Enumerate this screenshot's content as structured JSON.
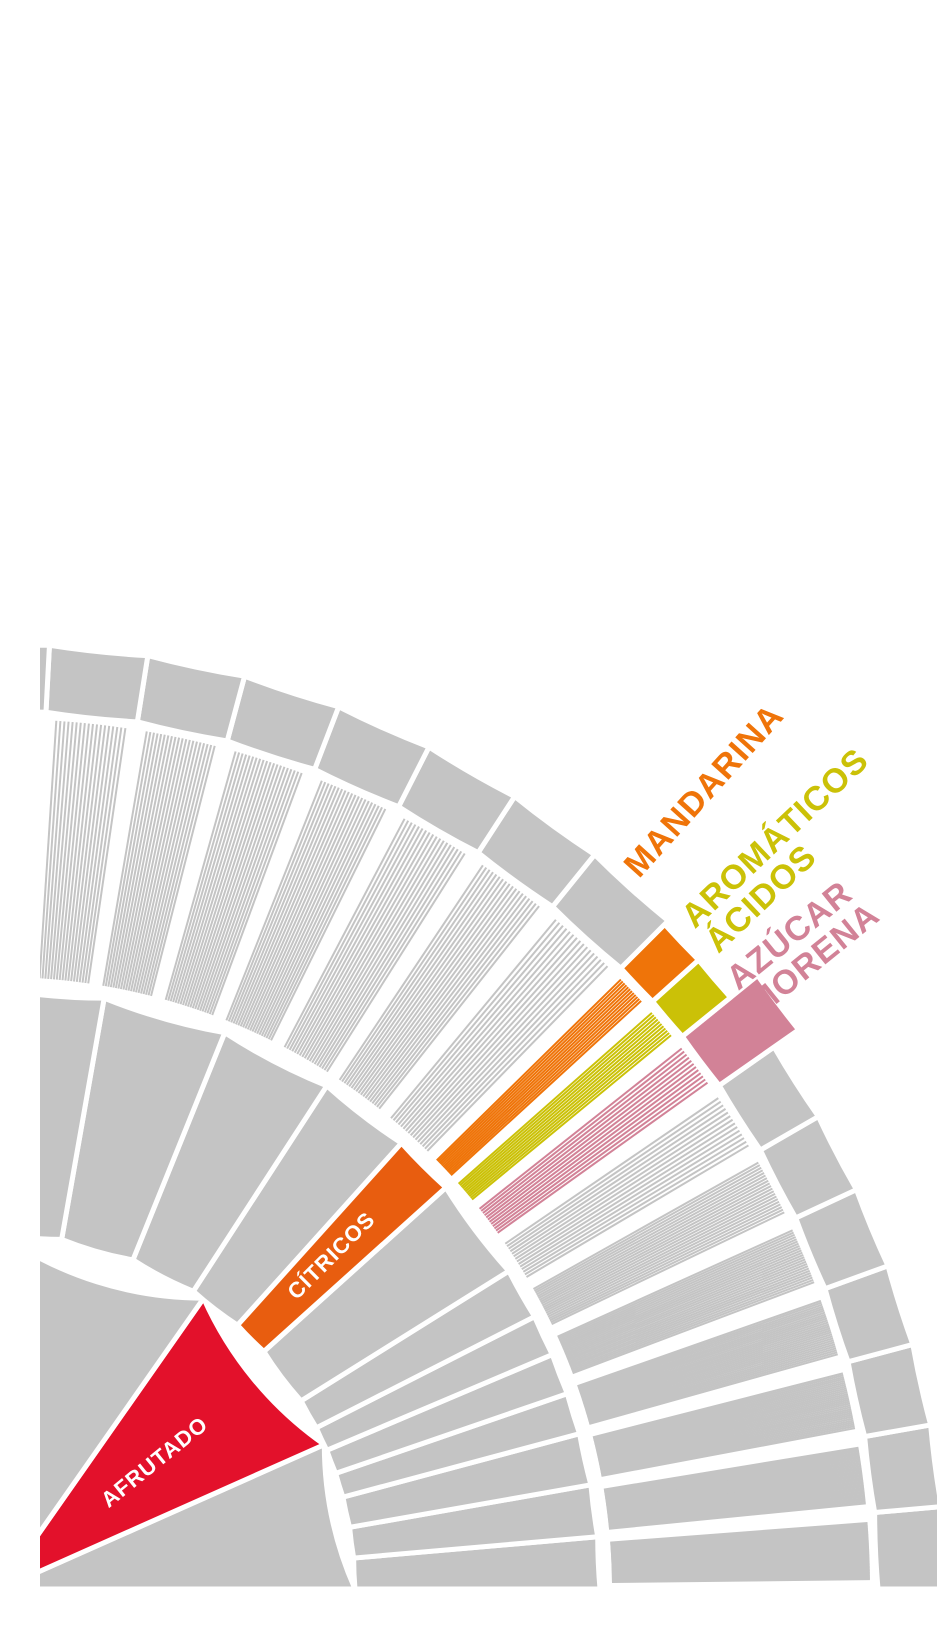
{
  "colors": {
    "gray": "#c4c4c4",
    "afrutado": "#e3112b",
    "citricos": "#e85d0f",
    "mandarina": "#ef7409",
    "aromaticos_acidos": "#cbc107",
    "azucar_morena": "#d28297"
  },
  "wheel": {
    "center_segment": {
      "label": "AFRUTADO",
      "color": "afrutado"
    },
    "middle_segment": {
      "label": "CÍTRICOS",
      "color": "citricos"
    }
  },
  "flavors": [
    {
      "id": "mandarina",
      "lines": [
        "MANDARINA"
      ],
      "color": "mandarina"
    },
    {
      "id": "aromaticos-acidos",
      "lines": [
        "AROMÁTICOS",
        "ÁCIDOS"
      ],
      "color": "aromaticos_acidos"
    },
    {
      "id": "azucar-morena",
      "lines": [
        "AZÚCAR",
        "MORENA"
      ],
      "color": "azucar_morena"
    }
  ]
}
